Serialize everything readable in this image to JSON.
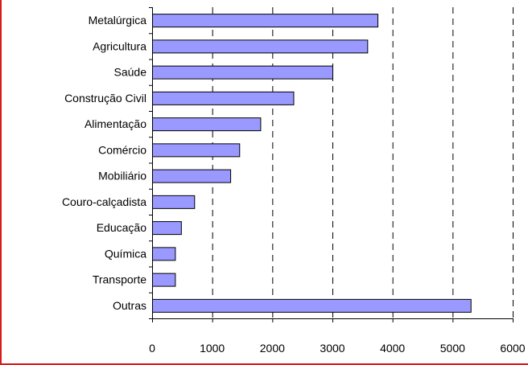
{
  "colors": {
    "bar_fill": "#9999ff",
    "bar_stroke": "#000000",
    "frame_border": "#d81a1a"
  },
  "chart_data": {
    "type": "bar",
    "orientation": "horizontal",
    "categories": [
      "Metalúrgica",
      "Agricultura",
      "Saúde",
      "Construção Civil",
      "Alimentação",
      "Comércio",
      "Mobiliário",
      "Couro-calçadista",
      "Educação",
      "Química",
      "Transporte",
      "Outras"
    ],
    "values": [
      3750,
      3580,
      3000,
      2350,
      1800,
      1450,
      1300,
      700,
      480,
      380,
      380,
      5300
    ],
    "x_ticks": [
      "0",
      "1000",
      "2000",
      "3000",
      "4000",
      "5000",
      "6000"
    ],
    "xlim": [
      0,
      6000
    ],
    "title": "",
    "xlabel": "",
    "ylabel": "",
    "grid": "vertical dashed",
    "legend": "none"
  }
}
